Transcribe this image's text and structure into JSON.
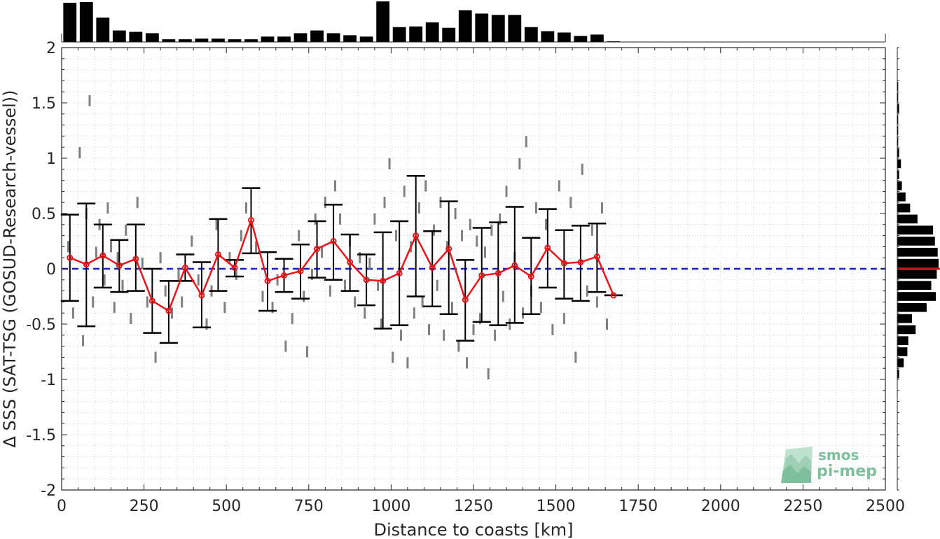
{
  "chart_data": {
    "type": "scatter",
    "xlabel": "Distance to coasts [km]",
    "ylabel": "Δ SSS (SAT-TSG (GOSUD-Research-vessel))",
    "xlim": [
      0,
      2500
    ],
    "ylim": [
      -2,
      2
    ],
    "xticks": [
      0,
      250,
      500,
      750,
      1000,
      1250,
      1500,
      1750,
      2000,
      2250,
      2500
    ],
    "yticks": [
      -2,
      -1.5,
      -1,
      -0.5,
      0,
      0.5,
      1,
      1.5,
      2
    ],
    "xtick_labels": [
      "0",
      "250",
      "500",
      "750",
      "1000",
      "1250",
      "1500",
      "1750",
      "2000",
      "2250",
      "2500"
    ],
    "ytick_labels": [
      "-2",
      "-1.5",
      "-1",
      "-0.5",
      "0",
      "0.5",
      "1",
      "1.5",
      "2"
    ],
    "grid": true,
    "reference_line": 0,
    "series": [
      {
        "kind": "binned_mean_with_error_bars",
        "x": [
          25,
          75,
          125,
          175,
          225,
          275,
          325,
          375,
          425,
          475,
          525,
          575,
          625,
          675,
          725,
          775,
          825,
          875,
          925,
          975,
          1025,
          1075,
          1125,
          1175,
          1225,
          1275,
          1325,
          1375,
          1425,
          1475,
          1525,
          1575,
          1625,
          1675
        ],
        "mean": [
          0.1,
          0.04,
          0.12,
          0.03,
          0.09,
          -0.29,
          -0.38,
          0.01,
          -0.24,
          0.13,
          0.01,
          0.44,
          -0.11,
          -0.06,
          -0.02,
          0.18,
          0.25,
          0.06,
          -0.1,
          -0.11,
          -0.04,
          0.3,
          0.01,
          0.18,
          -0.28,
          -0.06,
          -0.04,
          0.03,
          -0.07,
          0.19,
          0.05,
          0.06,
          0.11,
          -0.24
        ],
        "lower": [
          -0.29,
          -0.52,
          -0.17,
          -0.21,
          -0.2,
          -0.58,
          -0.67,
          -0.11,
          -0.53,
          -0.2,
          -0.07,
          0.14,
          -0.38,
          -0.21,
          -0.27,
          -0.08,
          -0.1,
          -0.2,
          -0.33,
          -0.54,
          -0.51,
          -0.25,
          -0.34,
          -0.41,
          -0.65,
          -0.48,
          -0.51,
          -0.49,
          -0.41,
          -0.17,
          -0.27,
          -0.29,
          -0.21,
          -0.24
        ],
        "upper": [
          0.49,
          0.59,
          0.4,
          0.26,
          0.4,
          0.0,
          -0.11,
          0.13,
          0.06,
          0.45,
          0.08,
          0.73,
          0.15,
          0.09,
          0.22,
          0.43,
          0.58,
          0.31,
          0.13,
          0.33,
          0.43,
          0.84,
          0.34,
          0.61,
          0.08,
          0.37,
          0.42,
          0.56,
          0.28,
          0.54,
          0.35,
          0.39,
          0.41,
          -0.24
        ]
      },
      {
        "kind": "raw_differences",
        "x": [
          20,
          35,
          55,
          65,
          75,
          85,
          95,
          105,
          115,
          130,
          140,
          150,
          160,
          170,
          185,
          195,
          210,
          230,
          245,
          260,
          285,
          300,
          315,
          335,
          355,
          365,
          395,
          415,
          440,
          455,
          470,
          495,
          510,
          530,
          545,
          560,
          590,
          610,
          640,
          655,
          680,
          700,
          720,
          735,
          745,
          760,
          770,
          790,
          800,
          815,
          830,
          845,
          860,
          875,
          890,
          905,
          920,
          935,
          950,
          960,
          970,
          980,
          995,
          1005,
          1015,
          1030,
          1040,
          1050,
          1060,
          1070,
          1085,
          1095,
          1105,
          1115,
          1130,
          1140,
          1150,
          1160,
          1170,
          1185,
          1195,
          1205,
          1215,
          1230,
          1240,
          1250,
          1260,
          1270,
          1285,
          1295,
          1305,
          1315,
          1330,
          1340,
          1350,
          1360,
          1375,
          1390,
          1400,
          1410,
          1425,
          1440,
          1455,
          1470,
          1490,
          1510,
          1525,
          1545,
          1560,
          1580,
          1595,
          1610,
          1625,
          1640,
          1655
        ],
        "y": [
          0.2,
          -0.4,
          1.05,
          -0.65,
          0.5,
          1.52,
          -0.3,
          0.15,
          0.4,
          -0.1,
          0.55,
          0.2,
          -0.35,
          0.1,
          -0.15,
          0.35,
          -0.45,
          0.6,
          0.05,
          -0.3,
          -0.8,
          0.1,
          -0.2,
          -0.4,
          -0.05,
          -0.3,
          0.25,
          -0.1,
          -0.5,
          -0.2,
          0.4,
          -0.35,
          0.1,
          -0.05,
          0.3,
          0.55,
          0.2,
          -0.25,
          -0.35,
          -0.1,
          -0.7,
          -0.45,
          0.3,
          -0.25,
          -0.75,
          -0.05,
          0.45,
          0.15,
          0.6,
          -0.2,
          0.75,
          0.45,
          -0.15,
          0.25,
          -0.3,
          0.1,
          -0.4,
          0.05,
          0.45,
          -0.15,
          -0.5,
          0.6,
          0.95,
          -0.8,
          0.3,
          -0.6,
          0.7,
          -0.85,
          0.2,
          -0.4,
          0.55,
          -0.3,
          0.75,
          -0.55,
          0.35,
          -0.15,
          0.6,
          -0.6,
          0.2,
          -0.35,
          0.5,
          -0.7,
          0.3,
          -0.85,
          0.4,
          -0.55,
          0.25,
          -0.45,
          0.15,
          -0.95,
          0.35,
          -0.6,
          0.45,
          -0.25,
          0.7,
          -0.5,
          0.1,
          0.95,
          -0.4,
          1.15,
          -0.2,
          0.55,
          -0.35,
          0.4,
          -0.55,
          0.75,
          -0.45,
          0.6,
          -0.8,
          0.9,
          -0.2,
          0.35,
          -0.3,
          0.55,
          -0.5
        ]
      }
    ],
    "top_histogram": {
      "bin_width": 50,
      "bin_centers": [
        25,
        75,
        125,
        175,
        225,
        275,
        325,
        375,
        425,
        475,
        525,
        575,
        625,
        675,
        725,
        775,
        825,
        875,
        925,
        975,
        1025,
        1075,
        1125,
        1175,
        1225,
        1275,
        1325,
        1375,
        1425,
        1475,
        1525,
        1575,
        1625,
        1675
      ],
      "counts": [
        58,
        59,
        36,
        17,
        15,
        13,
        4,
        4,
        5,
        5,
        4,
        4,
        8,
        8,
        13,
        17,
        13,
        10,
        8,
        60,
        22,
        23,
        29,
        21,
        47,
        42,
        40,
        40,
        22,
        16,
        14,
        9,
        11,
        1
      ]
    },
    "right_histogram": {
      "bin_width": 0.1,
      "bin_centers": [
        -0.95,
        -0.85,
        -0.75,
        -0.65,
        -0.55,
        -0.45,
        -0.35,
        -0.25,
        -0.15,
        -0.05,
        0.05,
        0.15,
        0.25,
        0.35,
        0.45,
        0.55,
        0.65,
        0.75,
        0.85,
        0.95,
        1.05,
        1.15,
        1.25,
        1.35,
        1.45,
        1.55,
        1.65
      ],
      "counts": [
        2,
        7,
        11,
        12,
        20,
        16,
        32,
        42,
        37,
        43,
        45,
        44,
        41,
        39,
        22,
        14,
        9,
        5,
        2,
        4,
        2,
        1,
        1,
        1,
        2,
        1,
        1
      ],
      "mean_line": 0
    }
  },
  "colors": {
    "axis": "#262626",
    "grid": "#d0d0d0",
    "scatter": "#808080",
    "error_bars": "#000000",
    "mean_line": "#e8141a",
    "zero_line": "#1a1adc",
    "histogram": "#000000",
    "hist_mean_line": "#c8141a",
    "logo": "#7fbf9e"
  },
  "logo": {
    "line1": "smos",
    "line2": "pi-mep"
  }
}
